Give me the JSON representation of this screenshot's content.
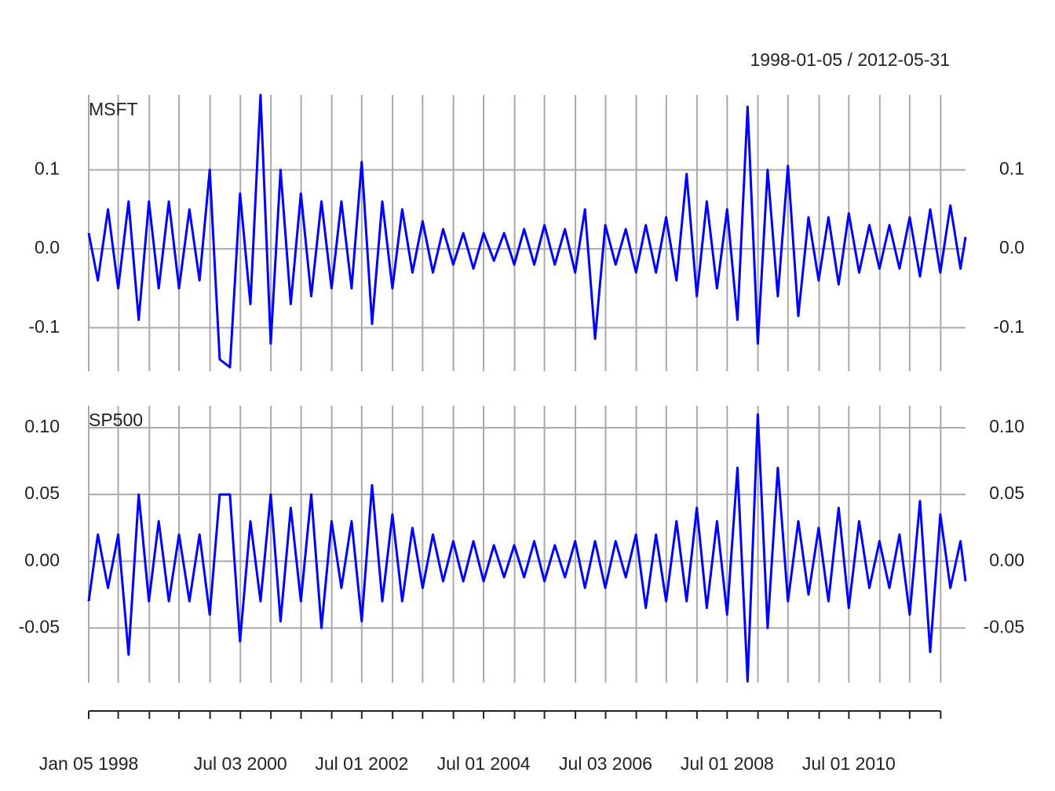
{
  "chart_data": [
    {
      "type": "line",
      "title": "1998-01-05 / 2012-05-31",
      "grid": true,
      "xlim": [
        "1998-01-05",
        "2012-05-31"
      ],
      "xticks": [
        {
          "value": "1998-01-05",
          "label": "Jan 05 1998"
        },
        {
          "value": "1998-07-01",
          "label": null
        },
        {
          "value": "1999-01-04",
          "label": null
        },
        {
          "value": "1999-07-01",
          "label": null
        },
        {
          "value": "2000-01-03",
          "label": null
        },
        {
          "value": "2000-07-03",
          "label": "Jul 03 2000"
        },
        {
          "value": "2001-01-02",
          "label": null
        },
        {
          "value": "2001-07-02",
          "label": null
        },
        {
          "value": "2002-01-02",
          "label": null
        },
        {
          "value": "2002-07-01",
          "label": "Jul 01 2002"
        },
        {
          "value": "2003-01-02",
          "label": null
        },
        {
          "value": "2003-07-01",
          "label": null
        },
        {
          "value": "2004-01-02",
          "label": null
        },
        {
          "value": "2004-07-01",
          "label": "Jul 01 2004"
        },
        {
          "value": "2005-01-03",
          "label": null
        },
        {
          "value": "2005-07-01",
          "label": null
        },
        {
          "value": "2006-01-03",
          "label": null
        },
        {
          "value": "2006-07-03",
          "label": "Jul 03 2006"
        },
        {
          "value": "2007-01-03",
          "label": null
        },
        {
          "value": "2007-07-02",
          "label": null
        },
        {
          "value": "2008-01-02",
          "label": null
        },
        {
          "value": "2008-07-01",
          "label": "Jul 01 2008"
        },
        {
          "value": "2009-01-02",
          "label": null
        },
        {
          "value": "2009-07-01",
          "label": null
        },
        {
          "value": "2010-01-04",
          "label": null
        },
        {
          "value": "2010-07-01",
          "label": "Jul 01 2010"
        },
        {
          "value": "2011-01-03",
          "label": null
        },
        {
          "value": "2011-07-01",
          "label": null
        },
        {
          "value": "2012-01-03",
          "label": null
        }
      ],
      "x": [
        "1998-01-05",
        "1998-03-01",
        "1998-05-01",
        "1998-07-01",
        "1998-09-01",
        "1998-11-01",
        "1999-01-01",
        "1999-03-01",
        "1999-05-01",
        "1999-07-01",
        "1999-09-01",
        "1999-11-01",
        "2000-01-01",
        "2000-03-01",
        "2000-05-01",
        "2000-07-01",
        "2000-09-01",
        "2000-11-01",
        "2001-01-01",
        "2001-03-01",
        "2001-05-01",
        "2001-07-01",
        "2001-09-01",
        "2001-11-01",
        "2002-01-01",
        "2002-03-01",
        "2002-05-01",
        "2002-07-01",
        "2002-09-01",
        "2002-11-01",
        "2003-01-01",
        "2003-03-01",
        "2003-05-01",
        "2003-07-01",
        "2003-09-01",
        "2003-11-01",
        "2004-01-01",
        "2004-03-01",
        "2004-05-01",
        "2004-07-01",
        "2004-09-01",
        "2004-11-01",
        "2005-01-01",
        "2005-03-01",
        "2005-05-01",
        "2005-07-01",
        "2005-09-01",
        "2005-11-01",
        "2006-01-01",
        "2006-03-01",
        "2006-05-01",
        "2006-07-01",
        "2006-09-01",
        "2006-11-01",
        "2007-01-01",
        "2007-03-01",
        "2007-05-01",
        "2007-07-01",
        "2007-09-01",
        "2007-11-01",
        "2008-01-01",
        "2008-03-01",
        "2008-05-01",
        "2008-07-01",
        "2008-09-01",
        "2008-11-01",
        "2009-01-01",
        "2009-03-01",
        "2009-05-01",
        "2009-07-01",
        "2009-09-01",
        "2009-11-01",
        "2010-01-01",
        "2010-03-01",
        "2010-05-01",
        "2010-07-01",
        "2010-09-01",
        "2010-11-01",
        "2011-01-01",
        "2011-03-01",
        "2011-05-01",
        "2011-07-01",
        "2011-09-01",
        "2011-11-01",
        "2012-01-01",
        "2012-03-01",
        "2012-05-01",
        "2012-05-31"
      ],
      "ylim": [
        -0.155,
        0.195
      ],
      "yticks": [
        -0.1,
        {
          "value": 0,
          "label": "0.0"
        },
        0.1
      ],
      "series": [
        {
          "name": "MSFT",
          "color": "#0000ff",
          "values": [
            0.02,
            -0.04,
            0.05,
            -0.05,
            0.06,
            -0.09,
            0.06,
            -0.05,
            0.06,
            -0.05,
            0.05,
            -0.04,
            0.1,
            -0.14,
            -0.15,
            0.07,
            -0.07,
            0.195,
            -0.12,
            0.1,
            -0.07,
            0.07,
            -0.06,
            0.06,
            -0.05,
            0.06,
            -0.05,
            0.11,
            -0.095,
            0.06,
            -0.05,
            0.05,
            -0.03,
            0.035,
            -0.03,
            0.025,
            -0.02,
            0.02,
            -0.025,
            0.02,
            -0.015,
            0.02,
            -0.02,
            0.025,
            -0.02,
            0.03,
            -0.02,
            0.025,
            -0.03,
            0.05,
            -0.114,
            0.03,
            -0.02,
            0.025,
            -0.03,
            0.03,
            -0.03,
            0.04,
            -0.04,
            0.095,
            -0.06,
            0.06,
            -0.05,
            0.05,
            -0.09,
            0.18,
            -0.12,
            0.1,
            -0.06,
            0.105,
            -0.085,
            0.04,
            -0.04,
            0.04,
            -0.045,
            0.045,
            -0.03,
            0.03,
            -0.025,
            0.03,
            -0.025,
            0.04,
            -0.035,
            0.05,
            -0.03,
            0.055,
            -0.025,
            0.015
          ]
        }
      ]
    },
    {
      "type": "line",
      "grid": true,
      "xlim": [
        "1998-01-05",
        "2012-05-31"
      ],
      "x": [
        "1998-01-05",
        "1998-03-01",
        "1998-05-01",
        "1998-07-01",
        "1998-09-01",
        "1998-11-01",
        "1999-01-01",
        "1999-03-01",
        "1999-05-01",
        "1999-07-01",
        "1999-09-01",
        "1999-11-01",
        "2000-01-01",
        "2000-03-01",
        "2000-05-01",
        "2000-07-01",
        "2000-09-01",
        "2000-11-01",
        "2001-01-01",
        "2001-03-01",
        "2001-05-01",
        "2001-07-01",
        "2001-09-01",
        "2001-11-01",
        "2002-01-01",
        "2002-03-01",
        "2002-05-01",
        "2002-07-01",
        "2002-09-01",
        "2002-11-01",
        "2003-01-01",
        "2003-03-01",
        "2003-05-01",
        "2003-07-01",
        "2003-09-01",
        "2003-11-01",
        "2004-01-01",
        "2004-03-01",
        "2004-05-01",
        "2004-07-01",
        "2004-09-01",
        "2004-11-01",
        "2005-01-01",
        "2005-03-01",
        "2005-05-01",
        "2005-07-01",
        "2005-09-01",
        "2005-11-01",
        "2006-01-01",
        "2006-03-01",
        "2006-05-01",
        "2006-07-01",
        "2006-09-01",
        "2006-11-01",
        "2007-01-01",
        "2007-03-01",
        "2007-05-01",
        "2007-07-01",
        "2007-09-01",
        "2007-11-01",
        "2008-01-01",
        "2008-03-01",
        "2008-05-01",
        "2008-07-01",
        "2008-09-01",
        "2008-11-01",
        "2009-01-01",
        "2009-03-01",
        "2009-05-01",
        "2009-07-01",
        "2009-09-01",
        "2009-11-01",
        "2010-01-01",
        "2010-03-01",
        "2010-05-01",
        "2010-07-01",
        "2010-09-01",
        "2010-11-01",
        "2011-01-01",
        "2011-03-01",
        "2011-05-01",
        "2011-07-01",
        "2011-09-01",
        "2011-11-01",
        "2012-01-01",
        "2012-03-01",
        "2012-05-01",
        "2012-05-31"
      ],
      "ylim": [
        -0.091,
        0.1165
      ],
      "yticks": [
        -0.05,
        {
          "value": 0,
          "label": "0.00"
        },
        0.05,
        {
          "value": 0.1,
          "label": "0.10"
        }
      ],
      "series": [
        {
          "name": "SP500",
          "color": "#0000ff",
          "values": [
            -0.03,
            0.02,
            -0.02,
            0.02,
            -0.07,
            0.05,
            -0.03,
            0.03,
            -0.03,
            0.02,
            -0.03,
            0.02,
            -0.04,
            0.05,
            0.05,
            -0.06,
            0.03,
            -0.03,
            0.05,
            -0.045,
            0.04,
            -0.03,
            0.05,
            -0.05,
            0.03,
            -0.02,
            0.03,
            -0.045,
            0.057,
            -0.03,
            0.035,
            -0.03,
            0.025,
            -0.02,
            0.02,
            -0.015,
            0.015,
            -0.015,
            0.015,
            -0.015,
            0.012,
            -0.012,
            0.012,
            -0.012,
            0.015,
            -0.015,
            0.012,
            -0.012,
            0.015,
            -0.02,
            0.015,
            -0.02,
            0.015,
            -0.012,
            0.02,
            -0.035,
            0.02,
            -0.03,
            0.03,
            -0.03,
            0.04,
            -0.035,
            0.03,
            -0.04,
            0.07,
            -0.09,
            0.11,
            -0.05,
            0.07,
            -0.03,
            0.03,
            -0.025,
            0.025,
            -0.03,
            0.04,
            -0.035,
            0.03,
            -0.02,
            0.015,
            -0.02,
            0.02,
            -0.04,
            0.045,
            -0.068,
            0.035,
            -0.02,
            0.015,
            -0.015
          ]
        }
      ]
    }
  ]
}
